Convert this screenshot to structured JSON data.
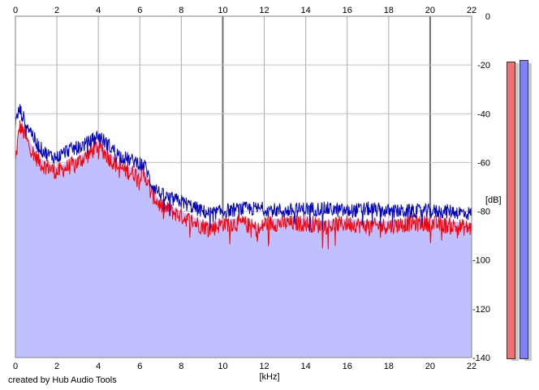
{
  "credit": "created by Hub Audio Tools",
  "meters": [
    {
      "name": "left-channel-level-meter",
      "color": "#f07070",
      "level_db": -18.5
    },
    {
      "name": "right-channel-level-meter",
      "color": "#8080ff",
      "level_db": -18.0
    }
  ],
  "chart_data": {
    "type": "area",
    "title": "",
    "xlabel": "[kHz]",
    "ylabel": "[dB]",
    "xlim": [
      0,
      22
    ],
    "ylim": [
      -140,
      0
    ],
    "x_ticks": [
      0,
      2,
      4,
      6,
      8,
      10,
      12,
      14,
      16,
      18,
      20,
      22
    ],
    "y_ticks": [
      0,
      -20,
      -40,
      -60,
      -80,
      -100,
      -120,
      -140
    ],
    "y_tick_labels": [
      "0",
      "-20",
      "-40",
      "-60",
      "-80",
      "-100",
      "-120",
      "-140"
    ],
    "grid": true,
    "fill_color": "#c0c0ff",
    "series": [
      {
        "color": "#ff0000",
        "x": [
          0,
          0.2,
          0.4,
          0.6,
          0.8,
          1.0,
          1.3,
          1.6,
          2.0,
          2.5,
          3.0,
          3.5,
          4.0,
          4.5,
          5.0,
          5.5,
          6.0,
          6.3,
          6.5,
          7.0,
          7.5,
          8.0,
          8.5,
          9.0,
          9.5,
          10,
          11,
          11.8,
          12,
          13,
          14,
          15,
          16,
          17,
          18,
          19,
          20,
          21,
          22
        ],
        "values": [
          -60,
          -45,
          -48,
          -52,
          -55,
          -58,
          -61,
          -62,
          -64,
          -62,
          -60,
          -57,
          -53,
          -58,
          -62,
          -64,
          -65,
          -66,
          -72,
          -78,
          -80,
          -82,
          -84,
          -86,
          -87,
          -85,
          -85,
          -88,
          -85,
          -85,
          -85,
          -86,
          -85,
          -86,
          -86,
          -85,
          -85,
          -86,
          -87
        ]
      },
      {
        "color": "#0000c0",
        "x": [
          0,
          0.2,
          0.4,
          0.6,
          0.8,
          1.0,
          1.3,
          1.6,
          2.0,
          2.5,
          3.0,
          3.5,
          4.0,
          4.5,
          5.0,
          5.5,
          6.0,
          6.3,
          6.5,
          7.0,
          7.5,
          8.0,
          8.5,
          9.0,
          9.5,
          10,
          11,
          12,
          13,
          14,
          15,
          16,
          17,
          18,
          19,
          20,
          21,
          22
        ],
        "values": [
          -44,
          -38,
          -42,
          -45,
          -48,
          -52,
          -55,
          -57,
          -58,
          -55,
          -54,
          -52,
          -49,
          -53,
          -57,
          -59,
          -60,
          -62,
          -68,
          -73,
          -75,
          -76,
          -78,
          -80,
          -81,
          -80,
          -79,
          -79,
          -80,
          -79,
          -79,
          -80,
          -79,
          -80,
          -80,
          -80,
          -80,
          -81
        ]
      }
    ]
  }
}
